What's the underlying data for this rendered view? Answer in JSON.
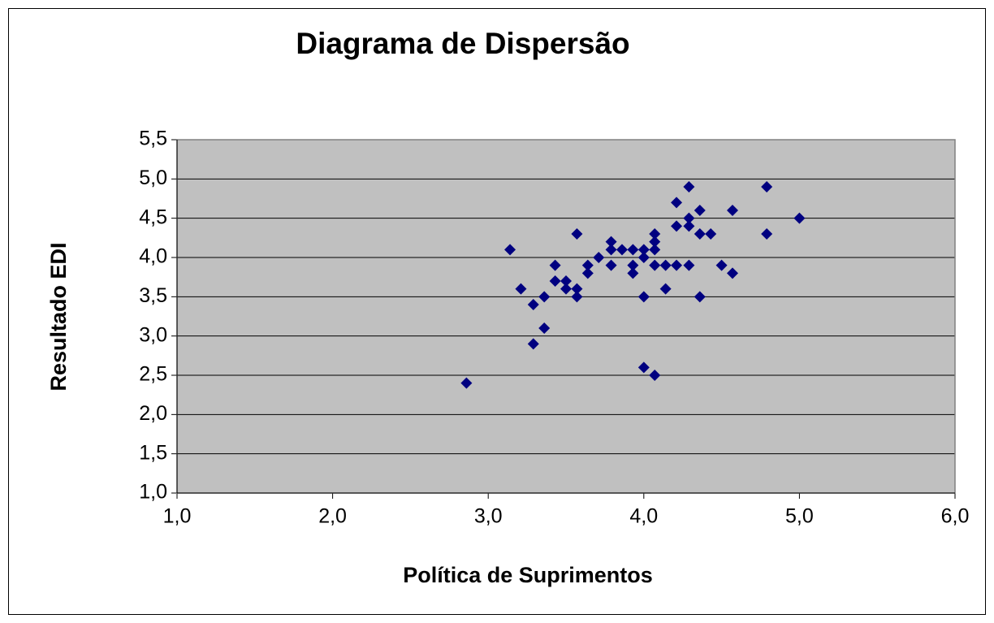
{
  "chart_data": {
    "type": "scatter",
    "title": "Diagrama de Dispersão",
    "x_label": "Política de Suprimentos",
    "y_label": "Resultado EDI",
    "color": "#000080",
    "plot_background": "#c0c0c0",
    "grid": true,
    "xlim": [
      1.0,
      6.0
    ],
    "xticks": [
      {
        "value": 1.0,
        "label": "1,0"
      },
      {
        "value": 2.0,
        "label": "2,0"
      },
      {
        "value": 3.0,
        "label": "3,0"
      },
      {
        "value": 4.0,
        "label": "4,0"
      },
      {
        "value": 5.0,
        "label": "5,0"
      },
      {
        "value": 6.0,
        "label": "6,0"
      }
    ],
    "ylim": [
      1.0,
      5.5
    ],
    "yticks": [
      {
        "value": 1.0,
        "label": "1,0"
      },
      {
        "value": 1.5,
        "label": "1,5"
      },
      {
        "value": 2.0,
        "label": "2,0"
      },
      {
        "value": 2.5,
        "label": "2,5"
      },
      {
        "value": 3.0,
        "label": "3,0"
      },
      {
        "value": 3.5,
        "label": "3,5"
      },
      {
        "value": 4.0,
        "label": "4,0"
      },
      {
        "value": 4.5,
        "label": "4,5"
      },
      {
        "value": 5.0,
        "label": "5,0"
      },
      {
        "value": 5.5,
        "label": "5,5"
      }
    ],
    "x": [
      2.86,
      3.14,
      3.21,
      3.29,
      3.29,
      3.36,
      3.36,
      3.43,
      3.43,
      3.5,
      3.5,
      3.57,
      3.57,
      3.57,
      3.64,
      3.64,
      3.71,
      3.79,
      3.79,
      3.79,
      3.86,
      3.93,
      3.93,
      3.93,
      4.0,
      4.0,
      4.0,
      4.0,
      4.07,
      4.07,
      4.07,
      4.07,
      4.07,
      4.14,
      4.14,
      4.21,
      4.21,
      4.21,
      4.29,
      4.29,
      4.29,
      4.29,
      4.36,
      4.36,
      4.36,
      4.43,
      4.5,
      4.57,
      4.57,
      4.79,
      4.79,
      5.0
    ],
    "values": [
      2.4,
      4.1,
      3.6,
      3.4,
      2.9,
      3.5,
      3.1,
      3.9,
      3.7,
      3.7,
      3.6,
      4.3,
      3.6,
      3.5,
      3.9,
      3.8,
      4.0,
      4.2,
      4.1,
      3.9,
      4.1,
      4.1,
      3.9,
      3.8,
      4.1,
      4.0,
      3.5,
      2.6,
      4.3,
      4.2,
      4.1,
      3.9,
      2.5,
      3.9,
      3.6,
      4.7,
      4.4,
      3.9,
      4.9,
      4.5,
      4.4,
      3.9,
      4.6,
      4.3,
      3.5,
      4.3,
      3.9,
      4.6,
      3.8,
      4.9,
      4.3,
      4.5
    ]
  }
}
